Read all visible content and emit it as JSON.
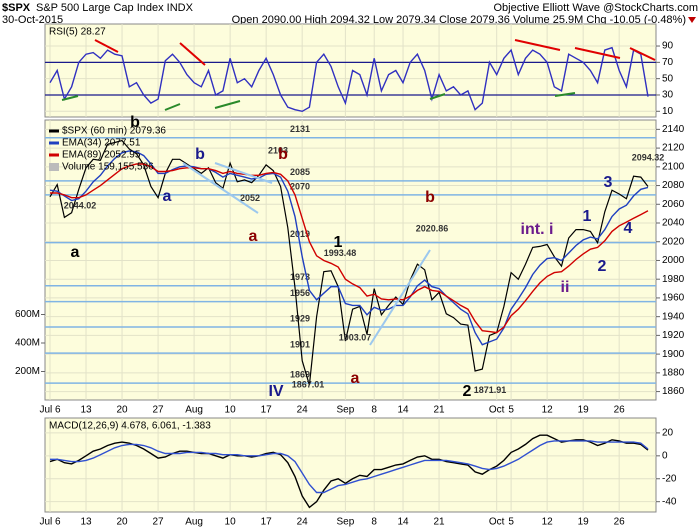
{
  "header": {
    "symbol": "$SPX",
    "name": "S&P 500 Large Cap Index INDX",
    "date": "30-Oct-2015",
    "quote": "Open 2090.00 High 2094.32 Low 2079.34 Close 2079.36 Volume 25.9M Chg -10.05 (-0.48%)",
    "credit": "Objective Elliott Wave @StockCharts.com"
  },
  "chart_data": [
    {
      "type": "line",
      "title": "RSI(5) 28.27",
      "ylim": [
        3,
        117
      ],
      "yticks": [
        10,
        30,
        50,
        70,
        90
      ],
      "levels": [
        30,
        70
      ],
      "grid": true,
      "series": [
        {
          "name": "RSI(5)",
          "color": "#3030c0",
          "values": [
            45,
            60,
            25,
            40,
            70,
            80,
            82,
            75,
            85,
            80,
            78,
            40,
            45,
            30,
            20,
            25,
            72,
            80,
            70,
            55,
            45,
            40,
            60,
            30,
            35,
            75,
            45,
            50,
            40,
            60,
            75,
            55,
            30,
            15,
            12,
            10,
            15,
            70,
            80,
            65,
            40,
            20,
            60,
            55,
            30,
            75,
            35,
            55,
            60,
            45,
            70,
            80,
            60,
            25,
            55,
            35,
            40,
            30,
            35,
            12,
            20,
            70,
            55,
            75,
            85,
            55,
            75,
            85,
            80,
            70,
            40,
            35,
            80,
            75,
            70,
            60,
            45,
            85,
            88,
            60,
            40,
            85,
            80,
            28
          ]
        }
      ]
    },
    {
      "type": "line",
      "title": "$SPX (60 min) 2079.36",
      "categories": [
        "Jul 6",
        null,
        null,
        null,
        null,
        "13",
        null,
        null,
        null,
        null,
        "20",
        null,
        null,
        null,
        null,
        "27",
        null,
        null,
        null,
        null,
        "Aug",
        null,
        null,
        null,
        null,
        "10",
        null,
        null,
        null,
        null,
        "17",
        null,
        null,
        null,
        null,
        "24",
        null,
        null,
        null,
        null,
        null,
        "Sep",
        null,
        null,
        null,
        "8",
        null,
        null,
        null,
        "14",
        null,
        null,
        null,
        null,
        "21",
        null,
        null,
        null,
        null,
        null,
        null,
        null,
        "Oct",
        null,
        "5",
        null,
        null,
        null,
        null,
        "12",
        null,
        null,
        null,
        null,
        "19",
        null,
        null,
        null,
        null,
        "26",
        null,
        null,
        null,
        null
      ],
      "ylim": [
        1851,
        2150
      ],
      "yticks": [
        1860,
        1880,
        1900,
        1920,
        1940,
        1960,
        1980,
        2000,
        2020,
        2040,
        2060,
        2080,
        2100,
        2120,
        2140
      ],
      "grid": true,
      "y2lim": [
        0,
        1965000000
      ],
      "y2ticks": [
        {
          "value": 200000000,
          "label": "200M"
        },
        {
          "value": 400000000,
          "label": "400M"
        },
        {
          "value": 600000000,
          "label": "600M"
        }
      ],
      "volume_label": "Volume 159,155,536",
      "levels": [
        2131,
        2085,
        2070,
        2019,
        1973,
        1956,
        1929,
        1901,
        1869
      ],
      "level_color": "#80b4e4",
      "price_labels": [
        2044.02,
        2052,
        2103,
        1993.48,
        1867.01,
        1903.07,
        2020.86,
        1871.91,
        2094.32
      ],
      "annotations": [
        {
          "text": "a",
          "color": "#000"
        },
        {
          "text": "b",
          "color": "#000"
        },
        {
          "text": "a",
          "color": "#1a1a8c"
        },
        {
          "text": "b",
          "color": "#1a1a8c"
        },
        {
          "text": "a",
          "color": "#8b0000"
        },
        {
          "text": "b",
          "color": "#8b0000"
        },
        {
          "text": "IV",
          "color": "#1a1a8c"
        },
        {
          "text": "1",
          "color": "#000"
        },
        {
          "text": "a",
          "color": "#8b0000"
        },
        {
          "text": "b",
          "color": "#8b0000"
        },
        {
          "text": "2",
          "color": "#000"
        },
        {
          "text": "int. i",
          "color": "#6a1a8c"
        },
        {
          "text": "ii",
          "color": "#6a1a8c"
        },
        {
          "text": "1",
          "color": "#1a1a8c"
        },
        {
          "text": "2",
          "color": "#1a1a8c"
        },
        {
          "text": "3",
          "color": "#1a1a8c"
        },
        {
          "text": "4",
          "color": "#1a1a8c"
        }
      ],
      "series": [
        {
          "name": "$SPX (60 min) 2079.36",
          "color": "#000000",
          "values": [
            2068,
            2081,
            2046,
            2051,
            2076,
            2099,
            2108,
            2107,
            2124,
            2126,
            2128,
            2119,
            2114,
            2102,
            2079,
            2067,
            2093,
            2108,
            2108,
            2103,
            2098,
            2093,
            2099,
            2083,
            2077,
            2104,
            2084,
            2086,
            2083,
            2091,
            2102,
            2096,
            2079,
            2035,
            1971,
            1893,
            1867,
            1940,
            1988,
            1989,
            1972,
            1914,
            1948,
            1951,
            1921,
            1970,
            1942,
            1952,
            1961,
            1953,
            1979,
            1996,
            1990,
            1958,
            1966,
            1943,
            1939,
            1932,
            1931,
            1882,
            1884,
            1920,
            1923,
            1951,
            1987,
            1980,
            1996,
            2014,
            2015,
            2017,
            2004,
            1994,
            2024,
            2033,
            2033,
            2031,
            2019,
            2052,
            2075,
            2071,
            2066,
            2090,
            2089,
            2079
          ]
        },
        {
          "name": "EMA(34) 2077.51",
          "color": "#2040c0",
          "values": [
            2075,
            2074,
            2069,
            2064,
            2066,
            2074,
            2084,
            2091,
            2101,
            2109,
            2115,
            2117,
            2116,
            2112,
            2103,
            2093,
            2093,
            2097,
            2100,
            2101,
            2100,
            2098,
            2098,
            2094,
            2089,
            2093,
            2091,
            2089,
            2087,
            2088,
            2092,
            2093,
            2089,
            2074,
            2047,
            2004,
            1968,
            1958,
            1965,
            1972,
            1972,
            1954,
            1952,
            1952,
            1942,
            1950,
            1947,
            1948,
            1952,
            1952,
            1961,
            1973,
            1979,
            1972,
            1970,
            1962,
            1955,
            1948,
            1943,
            1923,
            1910,
            1913,
            1916,
            1928,
            1948,
            1959,
            1971,
            1985,
            1995,
            2002,
            2003,
            2000,
            2008,
            2016,
            2022,
            2025,
            2023,
            2033,
            2047,
            2055,
            2059,
            2069,
            2076,
            2078
          ]
        },
        {
          "name": "EMA(89) 2052.95",
          "color": "#d00000",
          "values": [
            2072,
            2072,
            2070,
            2067,
            2067,
            2070,
            2075,
            2080,
            2086,
            2092,
            2098,
            2101,
            2103,
            2103,
            2100,
            2095,
            2095,
            2096,
            2098,
            2099,
            2099,
            2098,
            2098,
            2096,
            2093,
            2095,
            2093,
            2092,
            2091,
            2091,
            2093,
            2094,
            2092,
            2085,
            2070,
            2045,
            2020,
            2005,
            2000,
            1997,
            1993,
            1980,
            1975,
            1971,
            1962,
            1964,
            1959,
            1958,
            1959,
            1958,
            1962,
            1968,
            1972,
            1968,
            1967,
            1962,
            1957,
            1952,
            1948,
            1935,
            1925,
            1924,
            1923,
            1929,
            1941,
            1948,
            1957,
            1967,
            1976,
            1983,
            1987,
            1988,
            1994,
            2001,
            2007,
            2012,
            2014,
            2021,
            2031,
            2037,
            2041,
            2045,
            2049,
            2053
          ]
        }
      ]
    },
    {
      "type": "line",
      "title": "MACD(12,26,9) 4.678, 6.061, -1.383",
      "categories": [
        "Jul 6",
        null,
        null,
        null,
        null,
        "13",
        null,
        null,
        null,
        null,
        "20",
        null,
        null,
        null,
        null,
        "27",
        null,
        null,
        null,
        null,
        "Aug",
        null,
        null,
        null,
        null,
        "10",
        null,
        null,
        null,
        null,
        "17",
        null,
        null,
        null,
        null,
        "24",
        null,
        null,
        null,
        null,
        null,
        "Sep",
        null,
        null,
        null,
        "8",
        null,
        null,
        null,
        "14",
        null,
        null,
        null,
        null,
        "21",
        null,
        null,
        null,
        null,
        null,
        null,
        null,
        "Oct",
        null,
        "5",
        null,
        null,
        null,
        null,
        "12",
        null,
        null,
        null,
        null,
        "19",
        null,
        null,
        null,
        null,
        "26",
        null,
        null,
        null,
        null
      ],
      "ylim": [
        -49,
        33
      ],
      "yticks": [
        -40,
        -20,
        0,
        20
      ],
      "grid": true,
      "series": [
        {
          "name": "MACD",
          "color": "#000000",
          "values": [
            -5,
            -3,
            -6,
            -7,
            -4,
            0,
            4,
            6,
            9,
            11,
            12,
            11,
            9,
            6,
            2,
            -2,
            -1,
            2,
            4,
            4,
            3,
            2,
            2,
            0,
            -2,
            1,
            0,
            0,
            -1,
            0,
            2,
            3,
            1,
            -6,
            -18,
            -35,
            -45,
            -40,
            -30,
            -22,
            -20,
            -24,
            -20,
            -17,
            -18,
            -12,
            -12,
            -10,
            -8,
            -7,
            -4,
            -1,
            0,
            -3,
            -3,
            -5,
            -6,
            -7,
            -8,
            -14,
            -16,
            -12,
            -9,
            -4,
            3,
            6,
            10,
            15,
            18,
            18,
            15,
            12,
            13,
            14,
            14,
            12,
            9,
            11,
            14,
            13,
            11,
            11,
            10,
            5
          ]
        },
        {
          "name": "Signal",
          "color": "#3050d0",
          "values": [
            -3,
            -3,
            -4,
            -5,
            -5,
            -4,
            -2,
            1,
            4,
            7,
            9,
            10,
            10,
            9,
            7,
            4,
            2,
            2,
            2,
            3,
            3,
            3,
            2,
            2,
            1,
            1,
            1,
            0,
            0,
            0,
            1,
            2,
            2,
            0,
            -5,
            -15,
            -25,
            -32,
            -32,
            -29,
            -26,
            -25,
            -23,
            -21,
            -20,
            -18,
            -16,
            -14,
            -12,
            -10,
            -8,
            -6,
            -4,
            -4,
            -4,
            -4,
            -5,
            -6,
            -7,
            -9,
            -11,
            -12,
            -11,
            -9,
            -6,
            -3,
            1,
            5,
            9,
            12,
            13,
            13,
            13,
            13,
            13,
            13,
            12,
            12,
            12,
            12,
            12,
            12,
            11,
            6
          ]
        }
      ]
    }
  ]
}
